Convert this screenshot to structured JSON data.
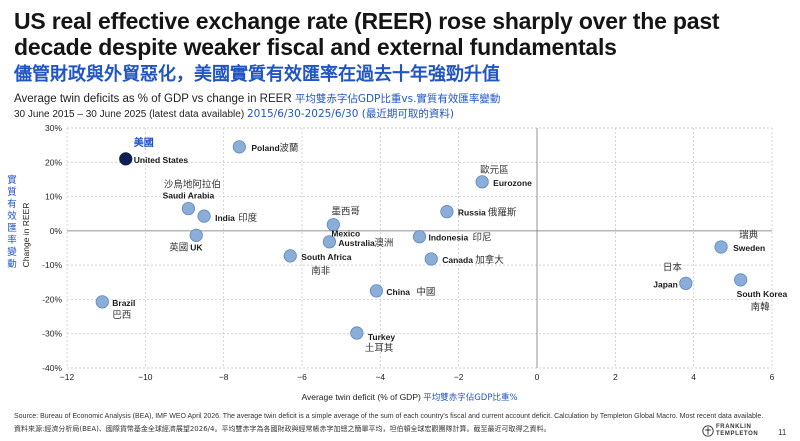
{
  "header": {
    "title": "US real effective exchange rate (REER) rose sharply over the past decade despite weaker fiscal and external fundamentals",
    "subtitle_cn": "儘管財政與外貿惡化，美國實質有效匯率在過去十年強勁升值",
    "chart_desc_en": "Average twin deficits as % of GDP vs change in REER",
    "chart_desc_cn": "平均雙赤字佔GDP比重vs.實質有效匯率變動",
    "date_en": "30 June 2015 – 30 June 2025 (latest data available)",
    "date_cn": "2015/6/30-2025/6/30 (最近期可取的資料)"
  },
  "footer": {
    "source_en": "Source: Bureau of Economic Analysis (BEA), IMF WEO April 2026. The average twin deficit is a simple average of the sum of each country's fiscal and current account deficit. Calculation by Templeton Global Macro. Most recent data available.",
    "source_cn": "資料來源:經濟分析局(BEA)、國際貨幣基金全球經濟展望2026/4。平均雙赤字為各國財政與經常帳赤字加總之簡單平均，坦伯頓全球宏觀團隊計算。截至最近可取得之資料。",
    "logo_line1": "FRANKLIN",
    "logo_line2": "TEMPLETON",
    "page_number": "11"
  },
  "chart_data": {
    "type": "scatter",
    "xlabel": "Average twin deficit (% of GDP)",
    "xlabel_cn": "平均雙赤字佔GDP比重%",
    "ylabel": "Change in REER",
    "ylabel_cn": "實質有效匯率變動",
    "xlim": [
      -12,
      6
    ],
    "ylim": [
      -40,
      30
    ],
    "x_ticks": [
      -12,
      -10,
      -8,
      -6,
      -4,
      -2,
      0,
      2,
      4,
      6
    ],
    "y_ticks": [
      -40,
      -30,
      -20,
      -10,
      0,
      10,
      20,
      30
    ],
    "y_tick_labels": [
      "-40%",
      "-30%",
      "-20%",
      "-10%",
      "0%",
      "10%",
      "20%",
      "30%"
    ],
    "grid": true,
    "colors": {
      "point": "#8aaed8",
      "point_edge": "#ffffff",
      "highlight": "#0d1f55",
      "grid": "#c4c4c4",
      "cn_label": "#2255c4"
    },
    "points": [
      {
        "name": "United States",
        "cn": "美國",
        "x": -10.5,
        "y": 21,
        "highlight": true
      },
      {
        "name": "Poland",
        "cn": "波蘭",
        "x": -7.6,
        "y": 24.5
      },
      {
        "name": "Saudi Arabia",
        "cn": "沙烏地阿拉伯",
        "x": -8.9,
        "y": 6.5
      },
      {
        "name": "India",
        "cn": "印度",
        "x": -8.5,
        "y": 4.3
      },
      {
        "name": "UK",
        "cn": "英國",
        "x": -8.7,
        "y": -1.3
      },
      {
        "name": "South Africa",
        "cn": "南非",
        "x": -6.3,
        "y": -7.3
      },
      {
        "name": "Mexico",
        "cn": "墨西哥",
        "x": -5.2,
        "y": 1.8
      },
      {
        "name": "Australia",
        "cn": "澳洲",
        "x": -5.3,
        "y": -3.2
      },
      {
        "name": "China",
        "cn": "中國",
        "x": -4.1,
        "y": -17.5
      },
      {
        "name": "Turkey",
        "cn": "土耳其",
        "x": -4.6,
        "y": -29.8
      },
      {
        "name": "Indonesia",
        "cn": "印尼",
        "x": -3.0,
        "y": -1.7
      },
      {
        "name": "Canada",
        "cn": "加拿大",
        "x": -2.7,
        "y": -8.2
      },
      {
        "name": "Russia",
        "cn": "俄羅斯",
        "x": -2.3,
        "y": 5.6
      },
      {
        "name": "Eurozone",
        "cn": "歐元區",
        "x": -1.4,
        "y": 14.3
      },
      {
        "name": "Brazil",
        "cn": "巴西",
        "x": -11.1,
        "y": -20.7
      },
      {
        "name": "Japan",
        "cn": "日本",
        "x": 3.8,
        "y": -15.3
      },
      {
        "name": "Sweden",
        "cn": "瑞典",
        "x": 4.7,
        "y": -4.7
      },
      {
        "name": "South Korea",
        "cn": "南韓",
        "x": 5.2,
        "y": -14.3
      }
    ]
  }
}
